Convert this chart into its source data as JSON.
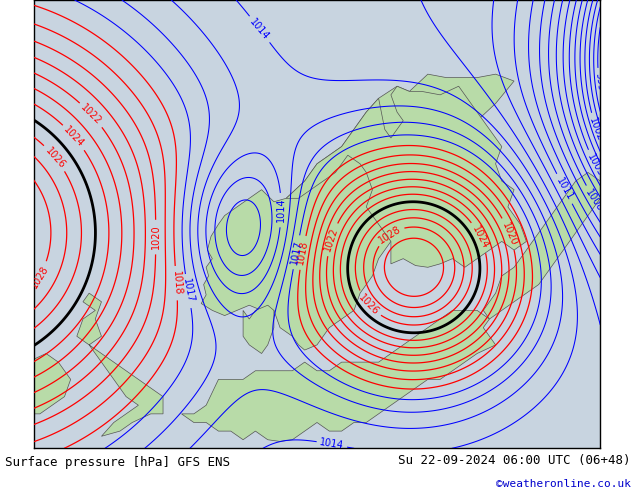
{
  "title_left": "Surface pressure [hPa] GFS ENS",
  "title_right": "Su 22-09-2024 06:00 UTC (06+48)",
  "credit": "©weatheronline.co.uk",
  "sea_color": "#c8d4e0",
  "land_color": "#b8dba8",
  "border_color": "#555555",
  "red_color": "#ff0000",
  "blue_color": "#0000ff",
  "black_color": "#000000",
  "white_color": "#ffffff",
  "credit_color": "#0000cc",
  "title_fontsize": 9,
  "label_fontsize": 7
}
